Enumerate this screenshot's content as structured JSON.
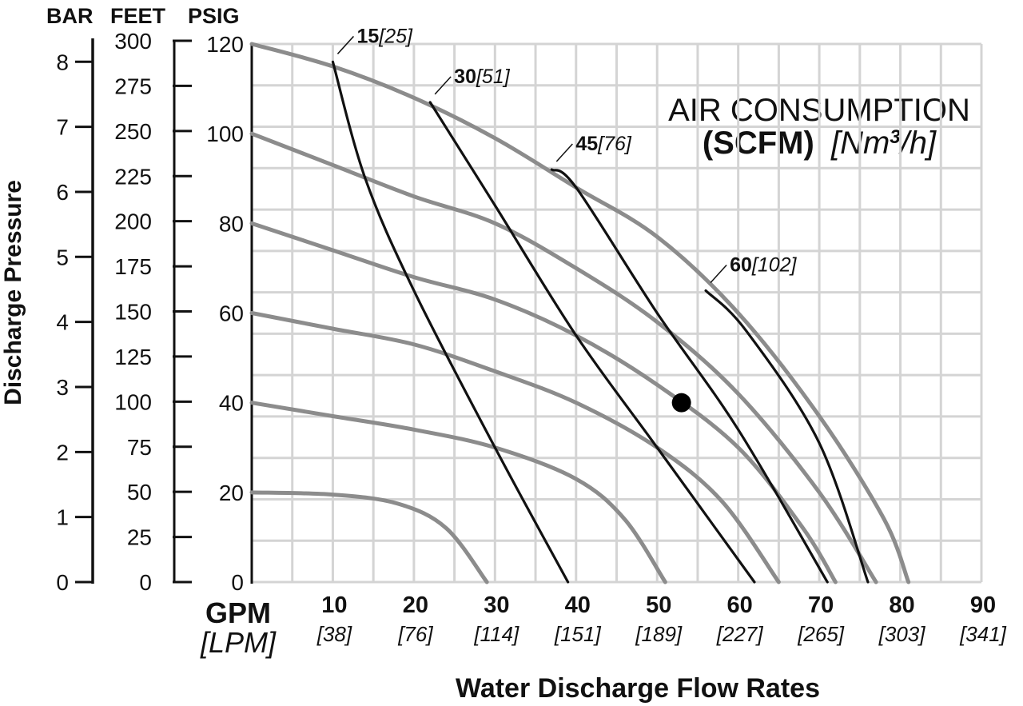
{
  "chart_data": {
    "type": "line",
    "xlabel": "Water Discharge Flow Rates",
    "ylabel": "Discharge Pressure",
    "unit_headers": {
      "bar": "BAR",
      "feet": "FEET",
      "psig": "PSIG"
    },
    "x_unit_primary": "GPM",
    "x_unit_secondary": "[LPM]",
    "xlim": [
      0,
      90
    ],
    "ylim_psig": [
      0,
      120
    ],
    "grid": true,
    "x_ticks": [
      {
        "gpm": "10",
        "lpm": "[38]"
      },
      {
        "gpm": "20",
        "lpm": "[76]"
      },
      {
        "gpm": "30",
        "lpm": "[114]"
      },
      {
        "gpm": "40",
        "lpm": "[151]"
      },
      {
        "gpm": "50",
        "lpm": "[189]"
      },
      {
        "gpm": "60",
        "lpm": "[227]"
      },
      {
        "gpm": "70",
        "lpm": "[265]"
      },
      {
        "gpm": "80",
        "lpm": "[303]"
      },
      {
        "gpm": "90",
        "lpm": "[341]"
      }
    ],
    "y_ticks_psig": [
      "0",
      "20",
      "40",
      "60",
      "80",
      "100",
      "120"
    ],
    "y_ticks_feet": [
      "0",
      "25",
      "50",
      "75",
      "100",
      "125",
      "150",
      "175",
      "200",
      "225",
      "250",
      "275",
      "300"
    ],
    "y_ticks_bar": [
      "0",
      "1",
      "2",
      "3",
      "4",
      "5",
      "6",
      "7",
      "8"
    ],
    "legend": {
      "line1": "AIR CONSUMPTION",
      "line2_bold": "(SCFM)",
      "line2_italic_a": "[Nm",
      "line2_sup": "3",
      "line2_italic_b": "/h]"
    },
    "performance_curves": [
      {
        "air_pressure_psig": 20,
        "points": [
          [
            0,
            20
          ],
          [
            10,
            19.5
          ],
          [
            18,
            17.5
          ],
          [
            24,
            12
          ],
          [
            29,
            0
          ]
        ]
      },
      {
        "air_pressure_psig": 40,
        "points": [
          [
            0,
            40
          ],
          [
            10,
            37
          ],
          [
            20,
            34
          ],
          [
            30,
            30
          ],
          [
            40,
            23
          ],
          [
            46,
            14
          ],
          [
            51,
            0
          ]
        ]
      },
      {
        "air_pressure_psig": 60,
        "points": [
          [
            0,
            60
          ],
          [
            10,
            56.5
          ],
          [
            20,
            53
          ],
          [
            30,
            47
          ],
          [
            40,
            40
          ],
          [
            50,
            30
          ],
          [
            58,
            18
          ],
          [
            65,
            0
          ]
        ]
      },
      {
        "air_pressure_psig": 80,
        "points": [
          [
            0,
            80
          ],
          [
            10,
            74
          ],
          [
            20,
            68
          ],
          [
            30,
            63
          ],
          [
            40,
            55
          ],
          [
            50,
            44
          ],
          [
            60,
            30
          ],
          [
            68,
            12
          ],
          [
            72,
            0
          ]
        ]
      },
      {
        "air_pressure_psig": 100,
        "points": [
          [
            0,
            100
          ],
          [
            10,
            93
          ],
          [
            20,
            86
          ],
          [
            30,
            80
          ],
          [
            40,
            70
          ],
          [
            50,
            58
          ],
          [
            60,
            42
          ],
          [
            70,
            20
          ],
          [
            77,
            0
          ]
        ]
      },
      {
        "air_pressure_psig": 120,
        "points": [
          [
            0,
            120
          ],
          [
            10,
            115
          ],
          [
            20,
            108
          ],
          [
            30,
            99
          ],
          [
            40,
            88
          ],
          [
            50,
            77
          ],
          [
            60,
            60
          ],
          [
            70,
            37
          ],
          [
            78,
            14
          ],
          [
            81,
            0
          ]
        ]
      }
    ],
    "air_consumption_curves": [
      {
        "label_bold": "15",
        "label_italic": "[25]",
        "points": [
          [
            10,
            116
          ],
          [
            14,
            90
          ],
          [
            20,
            65
          ],
          [
            30,
            30
          ],
          [
            39,
            0
          ]
        ]
      },
      {
        "label_bold": "30",
        "label_italic": "[51]",
        "points": [
          [
            22,
            107
          ],
          [
            30,
            84
          ],
          [
            40,
            55
          ],
          [
            50,
            30
          ],
          [
            62,
            0
          ]
        ]
      },
      {
        "label_bold": "45",
        "label_italic": "[76]",
        "points": [
          [
            37,
            92
          ],
          [
            40,
            88
          ],
          [
            50,
            60
          ],
          [
            60,
            34
          ],
          [
            71,
            0
          ]
        ]
      },
      {
        "label_bold": "60",
        "label_italic": "[102]",
        "points": [
          [
            56,
            65
          ],
          [
            61,
            56
          ],
          [
            70,
            31
          ],
          [
            76,
            0
          ]
        ]
      }
    ],
    "operating_point": {
      "gpm": 53,
      "psig": 40
    }
  }
}
